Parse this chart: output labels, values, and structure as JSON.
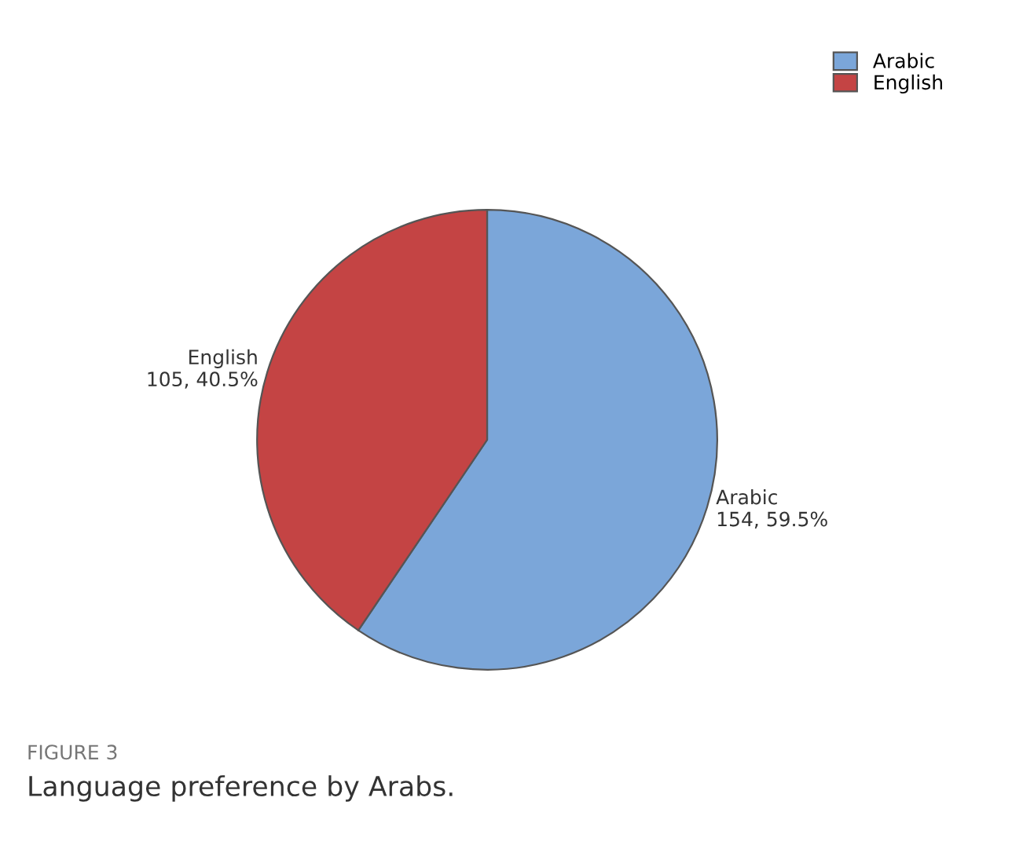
{
  "chart_data": {
    "type": "pie",
    "categories": [
      "Arabic",
      "English"
    ],
    "values": [
      154,
      105
    ],
    "value_labels": [
      "154, 59.5%",
      "105, 40.5%"
    ],
    "colors": [
      "#7ba6d9",
      "#c44444"
    ],
    "legend": "top right",
    "annotations": [
      "FIGURE 3",
      "Language preference by Arabs."
    ]
  }
}
